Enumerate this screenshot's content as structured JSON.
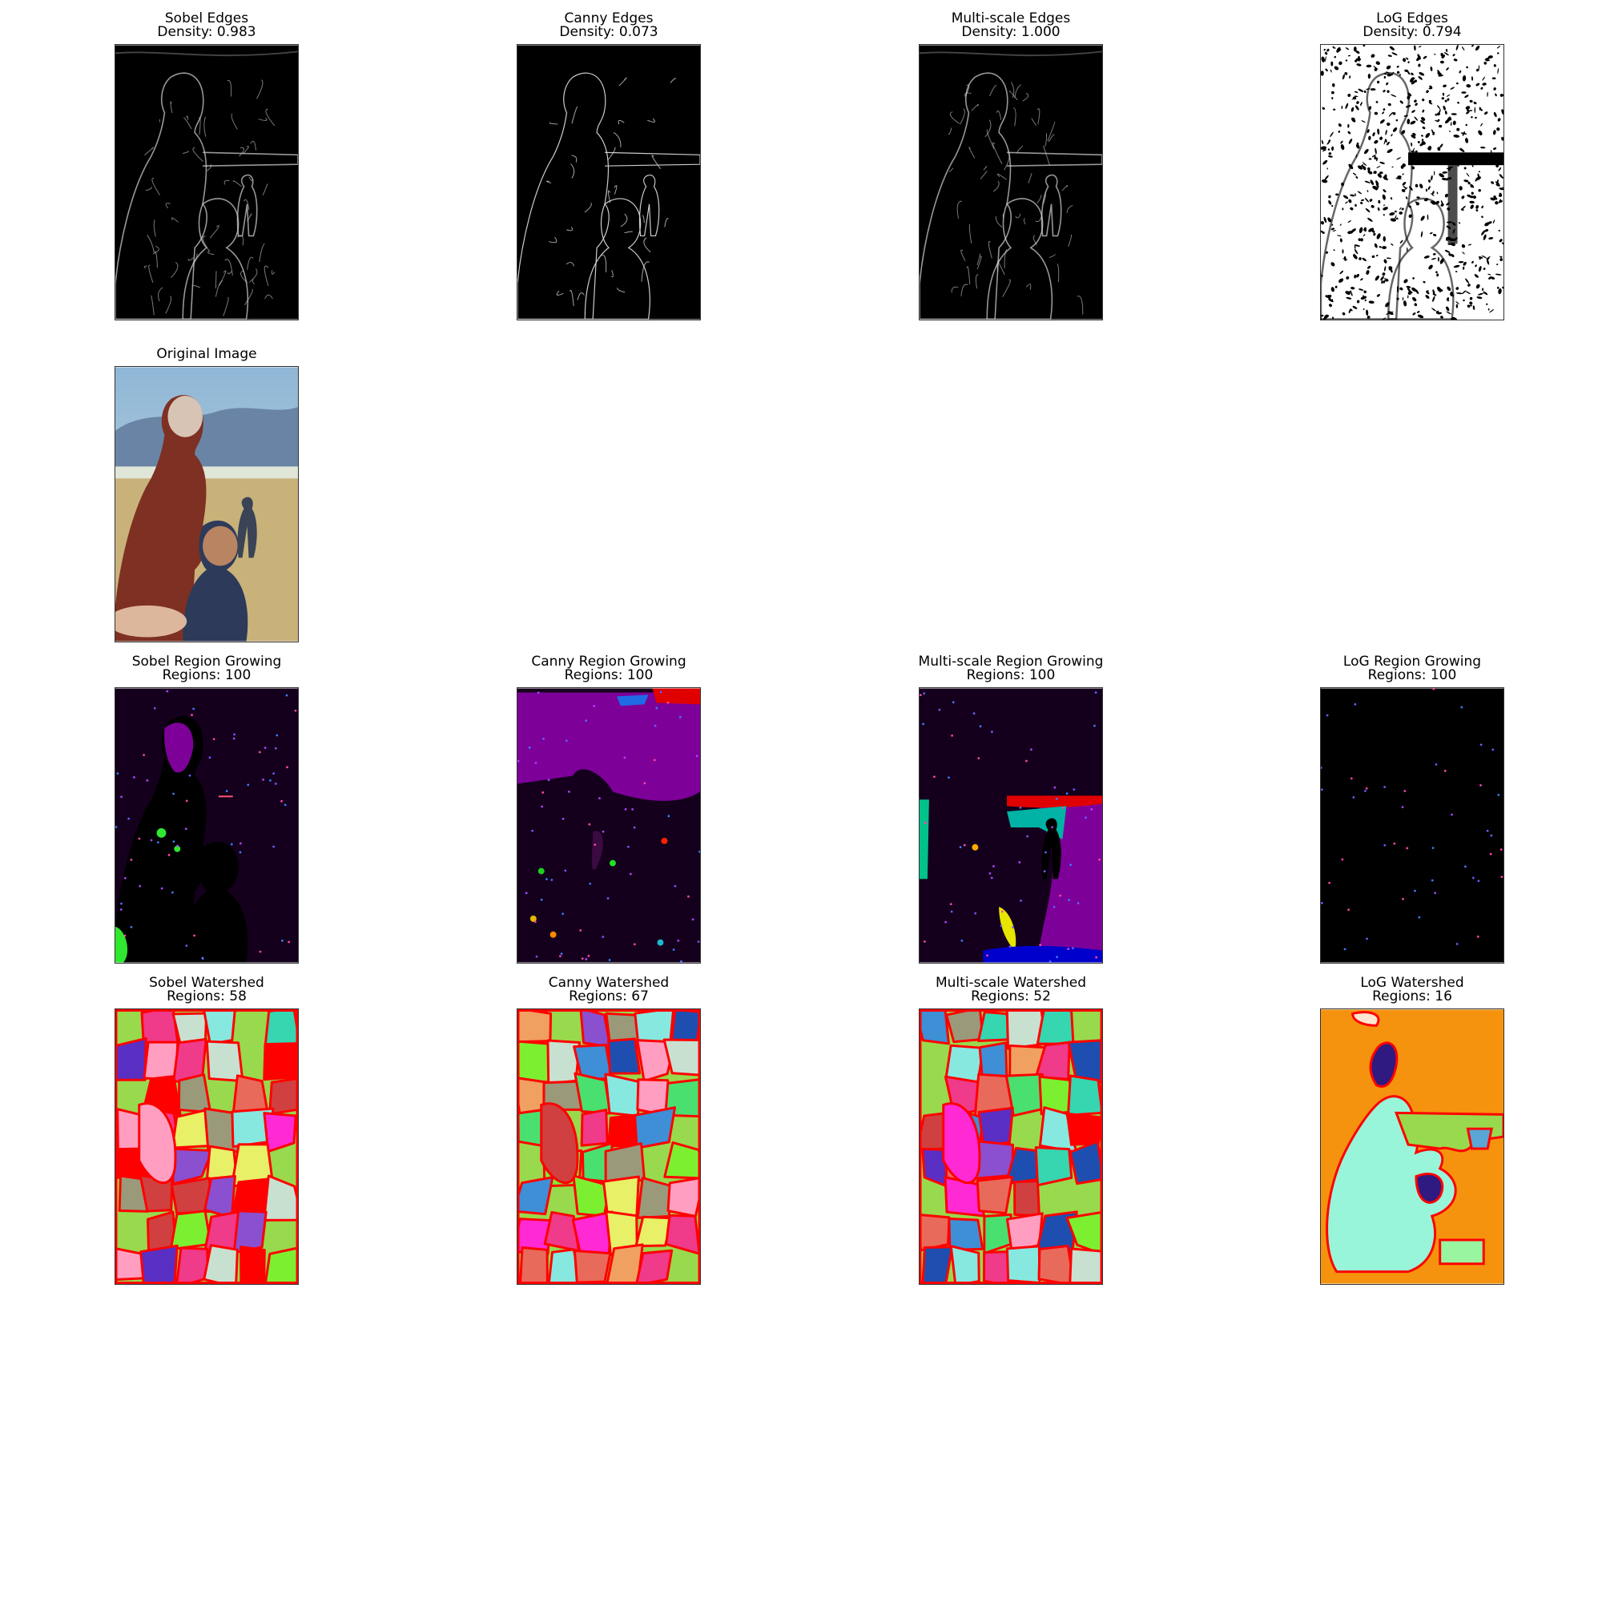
{
  "panels": [
    {
      "id": "sobel-edges",
      "title": "Sobel Edges",
      "subtitle": "Density: 0.983",
      "kind": "edges-dark"
    },
    {
      "id": "canny-edges",
      "title": "Canny Edges",
      "subtitle": "Density: 0.073",
      "kind": "edges-thin"
    },
    {
      "id": "multiscale-edges",
      "title": "Multi-scale Edges",
      "subtitle": "Density: 1.000",
      "kind": "edges-dark"
    },
    {
      "id": "log-edges",
      "title": "LoG Edges",
      "subtitle": "Density: 0.794",
      "kind": "edges-log"
    },
    {
      "id": "original-image",
      "title": "Original Image",
      "subtitle": "",
      "kind": "photo"
    },
    {
      "id": "sobel-region-growing",
      "title": "Sobel Region Growing",
      "subtitle": "Regions: 100",
      "kind": "region-sobel"
    },
    {
      "id": "canny-region-growing",
      "title": "Canny Region Growing",
      "subtitle": "Regions: 100",
      "kind": "region-canny"
    },
    {
      "id": "multiscale-region-growing",
      "title": "Multi-scale Region Growing",
      "subtitle": "Regions: 100",
      "kind": "region-multi"
    },
    {
      "id": "log-region-growing",
      "title": "LoG Region Growing",
      "subtitle": "Regions: 100",
      "kind": "region-log"
    },
    {
      "id": "sobel-watershed",
      "title": "Sobel Watershed",
      "subtitle": "Regions: 58",
      "kind": "watershed"
    },
    {
      "id": "canny-watershed",
      "title": "Canny Watershed",
      "subtitle": "Regions: 67",
      "kind": "watershed"
    },
    {
      "id": "multiscale-watershed",
      "title": "Multi-scale Watershed",
      "subtitle": "Regions: 52",
      "kind": "watershed"
    },
    {
      "id": "log-watershed",
      "title": "LoG Watershed",
      "subtitle": "Regions: 16",
      "kind": "watershed-log"
    }
  ],
  "colors": {
    "background": "#ffffff",
    "edge_bg": "#000000",
    "edge_line": "#d9d9d9",
    "region_bg": "#14001c",
    "region_purple": "#7d0099",
    "watershed_boundary": "#ff0000",
    "watershed_bg": "#99d94d",
    "log_watershed_bg": "#f5930f",
    "log_watershed_main": "#99f5d9"
  }
}
